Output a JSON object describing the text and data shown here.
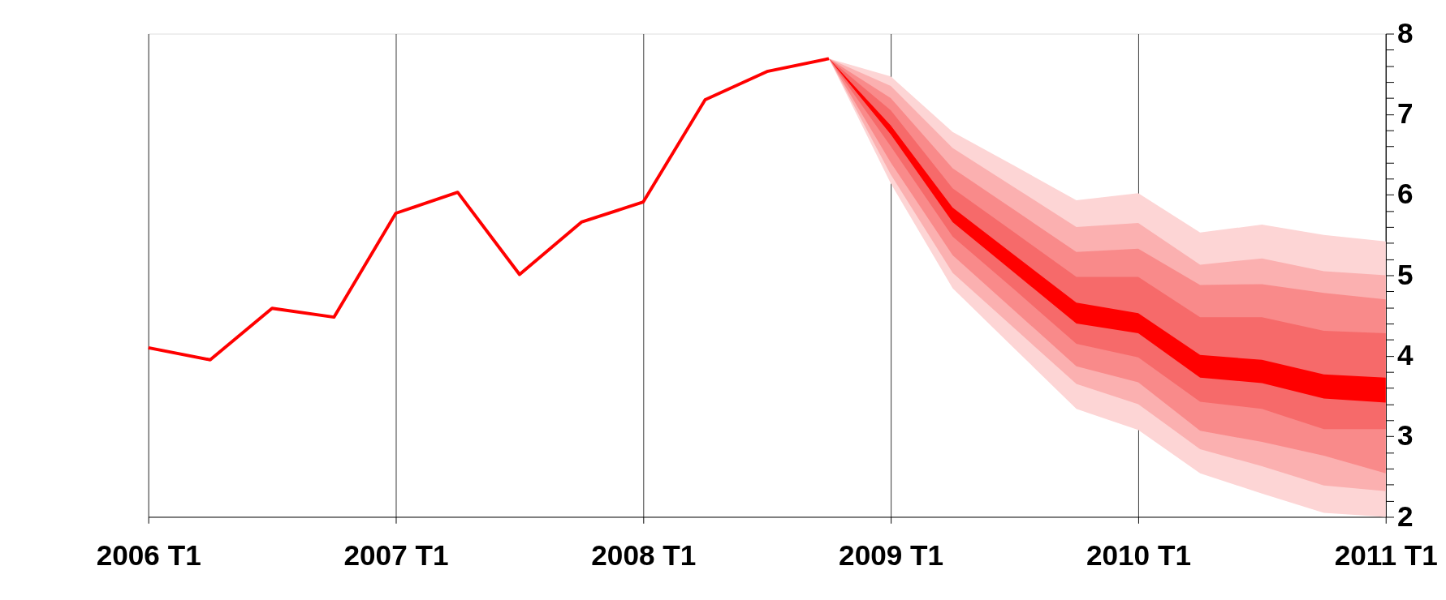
{
  "chart_data": {
    "type": "line",
    "categories": [
      "2006 T1",
      null,
      null,
      null,
      "2007 T1",
      null,
      null,
      null,
      "2008 T1",
      null,
      null,
      null,
      "2009 T1",
      null,
      null,
      null,
      "2010 T1",
      null,
      null,
      null,
      "2011 T1"
    ],
    "series": [
      {
        "type": "area",
        "color": "#fdd5d5",
        "values": [
          null,
          null,
          null,
          null,
          null,
          null,
          null,
          null,
          null,
          null,
          null,
          null,
          null,
          null,
          null,
          null,
          null,
          null,
          null,
          null,
          null
        ],
        "upper": [
          null,
          null,
          null,
          null,
          null,
          null,
          null,
          null,
          null,
          null,
          null,
          7.69,
          7.47,
          6.78,
          6.36,
          5.93,
          6.02,
          5.53,
          5.63,
          5.5,
          5.42
        ],
        "lower": [
          null,
          null,
          null,
          null,
          null,
          null,
          null,
          null,
          null,
          null,
          null,
          7.69,
          6.14,
          4.84,
          4.09,
          3.34,
          3.08,
          2.54,
          2.29,
          2.05,
          2.0
        ]
      },
      {
        "type": "area",
        "color": "#fbb0b0",
        "values": [
          null,
          null,
          null,
          null,
          null,
          null,
          null,
          null,
          null,
          null,
          null,
          null,
          null,
          null,
          null,
          null,
          null,
          null,
          null,
          null,
          null
        ],
        "upper": [
          null,
          null,
          null,
          null,
          null,
          null,
          null,
          null,
          null,
          null,
          null,
          7.69,
          7.35,
          6.58,
          6.09,
          5.6,
          5.65,
          5.13,
          5.21,
          5.05,
          5.0
        ],
        "lower": [
          null,
          null,
          null,
          null,
          null,
          null,
          null,
          null,
          null,
          null,
          null,
          7.69,
          6.25,
          5.03,
          4.34,
          3.65,
          3.4,
          2.84,
          2.63,
          2.39,
          2.32
        ]
      },
      {
        "type": "area",
        "color": "#f98a8a",
        "values": [
          null,
          null,
          null,
          null,
          null,
          null,
          null,
          null,
          null,
          null,
          null,
          null,
          null,
          null,
          null,
          null,
          null,
          null,
          null,
          null,
          null
        ],
        "upper": [
          null,
          null,
          null,
          null,
          null,
          null,
          null,
          null,
          null,
          null,
          null,
          7.69,
          7.2,
          6.33,
          5.81,
          5.29,
          5.33,
          4.88,
          4.89,
          4.78,
          4.7
        ],
        "lower": [
          null,
          null,
          null,
          null,
          null,
          null,
          null,
          null,
          null,
          null,
          null,
          7.69,
          6.4,
          5.25,
          4.56,
          3.87,
          3.67,
          3.07,
          2.93,
          2.76,
          2.54
        ]
      },
      {
        "type": "area",
        "color": "#f66a6a",
        "values": [
          null,
          null,
          null,
          null,
          null,
          null,
          null,
          null,
          null,
          null,
          null,
          null,
          null,
          null,
          null,
          null,
          null,
          null,
          null,
          null,
          null
        ],
        "upper": [
          null,
          null,
          null,
          null,
          null,
          null,
          null,
          null,
          null,
          null,
          null,
          7.69,
          7.05,
          6.08,
          5.53,
          4.98,
          4.98,
          4.48,
          4.48,
          4.31,
          4.28
        ],
        "lower": [
          null,
          null,
          null,
          null,
          null,
          null,
          null,
          null,
          null,
          null,
          null,
          7.69,
          6.6,
          5.48,
          4.82,
          4.15,
          3.98,
          3.43,
          3.34,
          3.09,
          3.09
        ]
      },
      {
        "type": "area",
        "color": "#ff0000",
        "values": [
          null,
          null,
          null,
          null,
          null,
          null,
          null,
          null,
          null,
          null,
          null,
          null,
          null,
          null,
          null,
          null,
          null,
          null,
          null,
          null,
          null
        ],
        "upper": [
          null,
          null,
          null,
          null,
          null,
          null,
          null,
          null,
          null,
          null,
          null,
          7.69,
          6.86,
          5.84,
          5.25,
          4.66,
          4.53,
          4.01,
          3.95,
          3.77,
          3.73
        ],
        "lower": [
          null,
          null,
          null,
          null,
          null,
          null,
          null,
          null,
          null,
          null,
          null,
          7.69,
          6.75,
          5.66,
          5.03,
          4.4,
          4.28,
          3.73,
          3.66,
          3.47,
          3.42
        ]
      },
      {
        "color": "#ff0000",
        "values": [
          4.1,
          3.95,
          4.59,
          4.48,
          5.77,
          6.03,
          5.01,
          5.66,
          5.91,
          7.18,
          7.53,
          7.69,
          null,
          null,
          null,
          null,
          null,
          null,
          null,
          null,
          null
        ]
      }
    ],
    "ylim": [
      2,
      8
    ],
    "yticks": [
      2,
      {
        "value": 2.2,
        "label": null
      },
      {
        "value": 2.4,
        "label": null
      },
      {
        "value": 2.6,
        "label": null
      },
      {
        "value": 2.8,
        "label": null
      },
      3,
      {
        "value": 3.2,
        "label": null
      },
      {
        "value": 3.4,
        "label": null
      },
      {
        "value": 3.6,
        "label": null
      },
      {
        "value": 3.8,
        "label": null
      },
      4,
      {
        "value": 4.2,
        "label": null
      },
      {
        "value": 4.4,
        "label": null
      },
      {
        "value": 4.6,
        "label": null
      },
      {
        "value": 4.8,
        "label": null
      },
      5,
      {
        "value": 5.2,
        "label": null
      },
      {
        "value": 5.4,
        "label": null
      },
      {
        "value": 5.6,
        "label": null
      },
      {
        "value": 5.8,
        "label": null
      },
      6,
      {
        "value": 6.2,
        "label": null
      },
      {
        "value": 6.4,
        "label": null
      },
      {
        "value": 6.6,
        "label": null
      },
      {
        "value": 6.8,
        "label": null
      },
      7,
      {
        "value": 7.2,
        "label": null
      },
      {
        "value": 7.4,
        "label": null
      },
      {
        "value": 7.6,
        "label": null
      },
      {
        "value": 7.8,
        "label": null
      },
      8
    ],
    "grid": "x",
    "line_style": "solid",
    "marker": "none"
  }
}
